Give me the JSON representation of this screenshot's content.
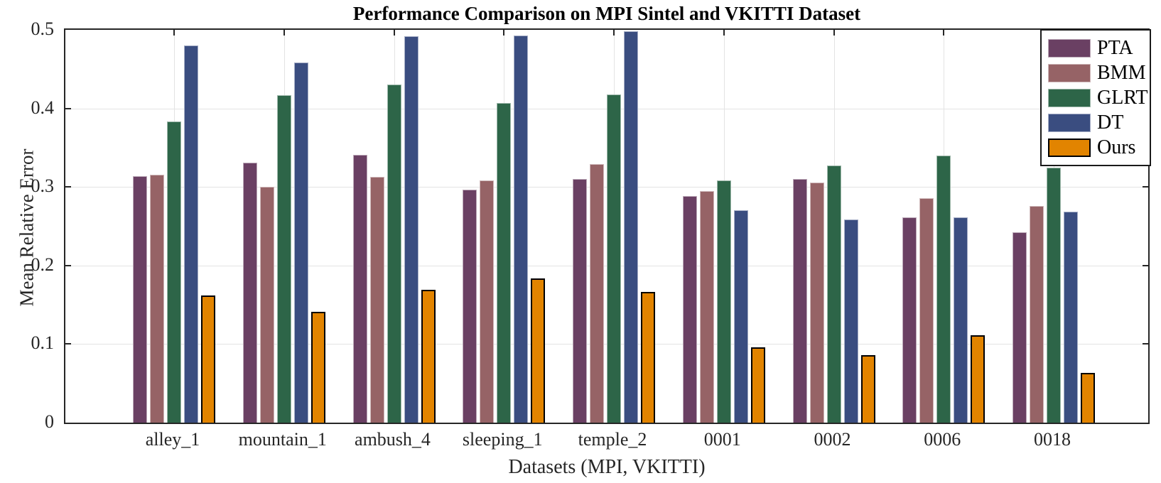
{
  "figure": {
    "title": "Performance Comparison on MPI Sintel and VKITTI Dataset",
    "xlabel": "Datasets (MPI, VKITTI)",
    "ylabel": "Mean Relative Error"
  },
  "chart_data": {
    "type": "bar",
    "title": "Performance Comparison on MPI Sintel and VKITTI Dataset",
    "xlabel": "Datasets (MPI, VKITTI)",
    "ylabel": "Mean Relative Error",
    "ylim": [
      0,
      0.5
    ],
    "yticks": [
      "0",
      "0.1",
      "0.2",
      "0.3",
      "0.4",
      "0.5"
    ],
    "grid": "both",
    "legend_position": "top-right",
    "axis_color": "#262626",
    "grid_color": "#e3e3e3",
    "categories": [
      "alley_1",
      "mountain_1",
      "ambush_4",
      "sleeping_1",
      "temple_2",
      "0001",
      "0002",
      "0006",
      "0018"
    ],
    "series": [
      {
        "name": "PTA",
        "color": "#6a4063",
        "edge": "rgba(255,255,255,0.55)",
        "values": [
          0.314,
          0.331,
          0.341,
          0.297,
          0.31,
          0.288,
          0.31,
          0.261,
          0.242
        ]
      },
      {
        "name": "BMM",
        "color": "#966366",
        "edge": "rgba(255,255,255,0.55)",
        "values": [
          0.316,
          0.3,
          0.313,
          0.308,
          0.329,
          0.295,
          0.306,
          0.286,
          0.276
        ]
      },
      {
        "name": "GLRT",
        "color": "#2d6548",
        "edge": "rgba(255,255,255,0.55)",
        "values": [
          0.383,
          0.417,
          0.43,
          0.407,
          0.418,
          0.308,
          0.327,
          0.34,
          0.325
        ]
      },
      {
        "name": "DT",
        "color": "#3a4d80",
        "edge": "rgba(255,255,255,0.55)",
        "values": [
          0.48,
          0.458,
          0.492,
          0.493,
          0.498,
          0.27,
          0.259,
          0.261,
          0.269
        ]
      },
      {
        "name": "Ours",
        "color": "#e28400",
        "edge": "#000000",
        "values": [
          0.162,
          0.141,
          0.169,
          0.184,
          0.166,
          0.096,
          0.086,
          0.111,
          0.063
        ]
      }
    ]
  }
}
